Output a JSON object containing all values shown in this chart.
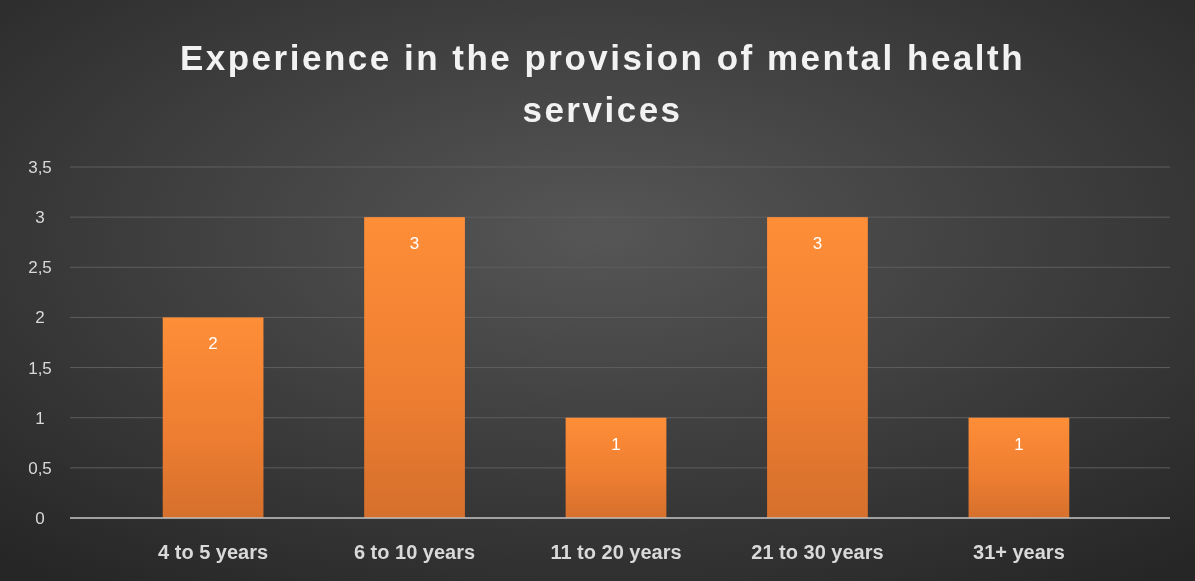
{
  "chart_data": {
    "type": "bar",
    "title": "Experience in the provision of mental health services",
    "categories": [
      "4 to 5 years",
      "6 to 10 years",
      "11 to 20 years",
      "21 to 30 years",
      "31+ years"
    ],
    "values": [
      2,
      3,
      1,
      3,
      1
    ],
    "color": "#ed7d31",
    "ylim": [
      0,
      3.5
    ],
    "yticks": [
      0,
      {
        "value": 0.5,
        "label": "0,5"
      },
      1,
      {
        "value": 1.5,
        "label": "1,5"
      },
      2,
      {
        "value": 2.5,
        "label": "2,5"
      },
      3,
      {
        "value": 3.5,
        "label": "3,5"
      }
    ],
    "grid": "y",
    "data_labels": true
  }
}
